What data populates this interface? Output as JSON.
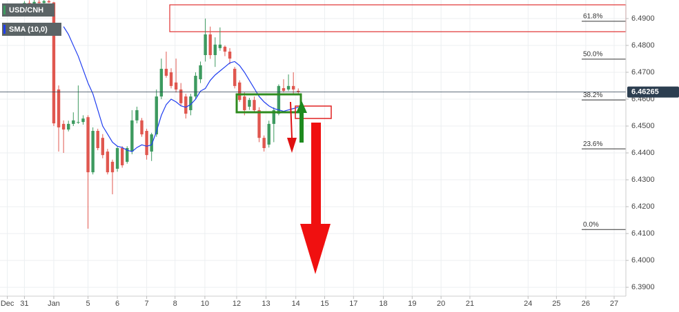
{
  "chart_data": {
    "type": "candlestick",
    "title": "USD/CNH",
    "x": [
      0,
      1,
      2,
      3,
      4,
      5,
      6,
      7,
      8,
      9,
      10,
      11,
      12,
      13,
      14,
      15,
      16,
      17,
      18,
      19,
      20,
      21,
      22,
      23,
      24,
      25,
      26,
      27,
      28,
      29,
      30,
      31,
      32,
      33,
      34,
      35,
      36,
      37,
      38,
      39,
      40,
      41,
      42,
      43,
      44,
      45,
      46,
      47,
      48,
      49,
      50,
      51,
      52,
      53,
      54,
      55,
      56
    ],
    "open": [
      6.495,
      6.4958,
      6.4955,
      6.4962,
      6.4958,
      6.4965,
      6.496,
      6.4636,
      6.4508,
      6.4487,
      6.4508,
      6.4513,
      6.4515,
      6.4533,
      6.4328,
      6.4482,
      6.4456,
      6.4405,
      6.4367,
      6.4341,
      6.4418,
      6.4367,
      6.4405,
      6.4521,
      6.4521,
      6.4482,
      6.4405,
      6.4469,
      6.461,
      6.4713,
      6.47,
      6.4662,
      6.4636,
      6.461,
      6.4559,
      6.461,
      6.4674,
      6.4764,
      6.4841,
      6.4764,
      6.479,
      6.4795,
      6.4777,
      6.4713,
      6.4662,
      6.461,
      6.4572,
      6.4597,
      6.4559,
      6.4456,
      6.4431,
      6.4508,
      6.4546,
      6.4641,
      6.4636,
      6.4649,
      6.4631
    ],
    "high": [
      6.4965,
      6.4968,
      6.497,
      6.4975,
      6.4972,
      6.4975,
      6.4962,
      6.4651,
      6.4521,
      6.452,
      6.4551,
      6.4651,
      6.454,
      6.454,
      6.4495,
      6.449,
      6.447,
      6.4415,
      6.4375,
      6.4425,
      6.4425,
      6.4425,
      6.4559,
      6.4572,
      6.453,
      6.449,
      6.4475,
      6.4636,
      6.4751,
      6.4777,
      6.4715,
      6.4751,
      6.466,
      6.462,
      6.462,
      6.47,
      6.474,
      6.49,
      6.487,
      6.483,
      6.4867,
      6.48,
      6.479,
      6.472,
      6.467,
      6.4625,
      6.4605,
      6.461,
      6.457,
      6.4465,
      6.452,
      6.457,
      6.4655,
      6.4674,
      6.4692,
      6.47,
      6.464
    ],
    "low": [
      6.4945,
      6.495,
      6.4948,
      6.4955,
      6.495,
      6.4958,
      6.45,
      6.4405,
      6.44,
      6.448,
      6.45,
      6.4508,
      6.4505,
      6.4118,
      6.432,
      6.441,
      6.438,
      6.432,
      6.4246,
      6.433,
      6.4345,
      6.436,
      6.4395,
      6.451,
      6.446,
      6.4375,
      6.437,
      6.446,
      6.46,
      6.468,
      6.464,
      6.4625,
      6.4575,
      6.4528,
      6.454,
      6.46,
      6.466,
      6.474,
      6.475,
      6.472,
      6.478,
      6.476,
      6.473,
      6.464,
      6.459,
      6.454,
      6.456,
      6.455,
      6.444,
      6.4405,
      6.442,
      6.444,
      6.454,
      6.4625,
      6.463,
      6.462,
      6.462
    ],
    "close": [
      6.4958,
      6.4955,
      6.4962,
      6.4958,
      6.4965,
      6.496,
      6.451,
      6.4495,
      6.4487,
      6.4508,
      6.4521,
      6.4515,
      6.4528,
      6.4328,
      6.4482,
      6.4418,
      6.4392,
      6.4328,
      6.4328,
      6.4418,
      6.4354,
      6.4418,
      6.4521,
      6.4559,
      6.4469,
      6.4392,
      6.4469,
      6.461,
      6.4713,
      6.4687,
      6.4649,
      6.4636,
      6.4585,
      6.4546,
      6.461,
      6.4687,
      6.4726,
      6.4841,
      6.4764,
      6.4803,
      6.4803,
      6.4777,
      6.4751,
      6.4649,
      6.4597,
      6.4559,
      6.4597,
      6.4559,
      6.4456,
      6.4418,
      6.4508,
      6.4559,
      6.4649,
      6.4631,
      6.4649,
      6.4636,
      6.4627
    ],
    "up_color": "#3d9a5f",
    "down_color": "#e0574f",
    "sma": {
      "name": "SMA (10,0)",
      "color": "#1f3df0",
      "values": [
        null,
        null,
        null,
        null,
        null,
        null,
        null,
        null,
        6.487,
        6.4841,
        6.48,
        6.476,
        6.471,
        6.466,
        6.462,
        6.456,
        6.45,
        6.447,
        6.444,
        6.4425,
        6.442,
        6.441,
        6.4405,
        6.442,
        6.443,
        6.4425,
        6.443,
        6.448,
        6.454,
        6.458,
        6.46,
        6.459,
        6.4575,
        6.457,
        6.458,
        6.46,
        6.463,
        6.464,
        6.467,
        6.469,
        6.4705,
        6.472,
        6.4735,
        6.474,
        6.4725,
        6.47,
        6.467,
        6.464,
        6.461,
        6.459,
        6.4575,
        6.4565,
        6.456,
        6.4555,
        6.456,
        6.4565,
        6.457
      ]
    },
    "last_price": 6.46265,
    "fib_levels": [
      {
        "value": 6.489,
        "label": "61.8%"
      },
      {
        "value": 6.4749,
        "label": "50.0%"
      },
      {
        "value": 6.4597,
        "label": "38.2%"
      },
      {
        "value": 6.4415,
        "label": "23.6%"
      },
      {
        "value": 6.4115,
        "label": "0.0%"
      }
    ],
    "xlim": [
      -5,
      123
    ],
    "ylim": [
      6.3867,
      6.4969
    ],
    "yticks": [
      {
        "value": 6.49,
        "label": "6.4900"
      },
      {
        "value": 6.48,
        "label": "6.4800"
      },
      {
        "value": 6.47,
        "label": "6.4700"
      },
      {
        "value": 6.46,
        "label": "6.4600"
      },
      {
        "value": 6.45,
        "label": "6.4500"
      },
      {
        "value": 6.44,
        "label": "6.4400"
      },
      {
        "value": 6.43,
        "label": "6.4300"
      },
      {
        "value": 6.42,
        "label": "6.4200"
      },
      {
        "value": 6.41,
        "label": "6.4100"
      },
      {
        "value": 6.4,
        "label": "6.4000"
      },
      {
        "value": 6.39,
        "label": "6.3900"
      }
    ],
    "xticks": [
      {
        "value": -3.5,
        "label": "Dec"
      },
      {
        "value": 0,
        "label": "31"
      },
      {
        "value": 6,
        "label": "Jan"
      },
      {
        "value": 13,
        "label": "5"
      },
      {
        "value": 19,
        "label": "6"
      },
      {
        "value": 25,
        "label": "7"
      },
      {
        "value": 30.8,
        "label": "8"
      },
      {
        "value": 36.9,
        "label": "10"
      },
      {
        "value": 43.4,
        "label": "12"
      },
      {
        "value": 49.4,
        "label": "13"
      },
      {
        "value": 55.5,
        "label": "14"
      },
      {
        "value": 61.4,
        "label": "15"
      },
      {
        "value": 67.3,
        "label": "17"
      },
      {
        "value": 73.4,
        "label": "18"
      },
      {
        "value": 79.3,
        "label": "19"
      },
      {
        "value": 85.2,
        "label": "20"
      },
      {
        "value": 91.1,
        "label": "21"
      },
      {
        "value": 103,
        "label": "24"
      },
      {
        "value": 108.8,
        "label": "25"
      },
      {
        "value": 114.8,
        "label": "26"
      },
      {
        "value": 120.6,
        "label": "27"
      }
    ],
    "grid": true
  }
}
